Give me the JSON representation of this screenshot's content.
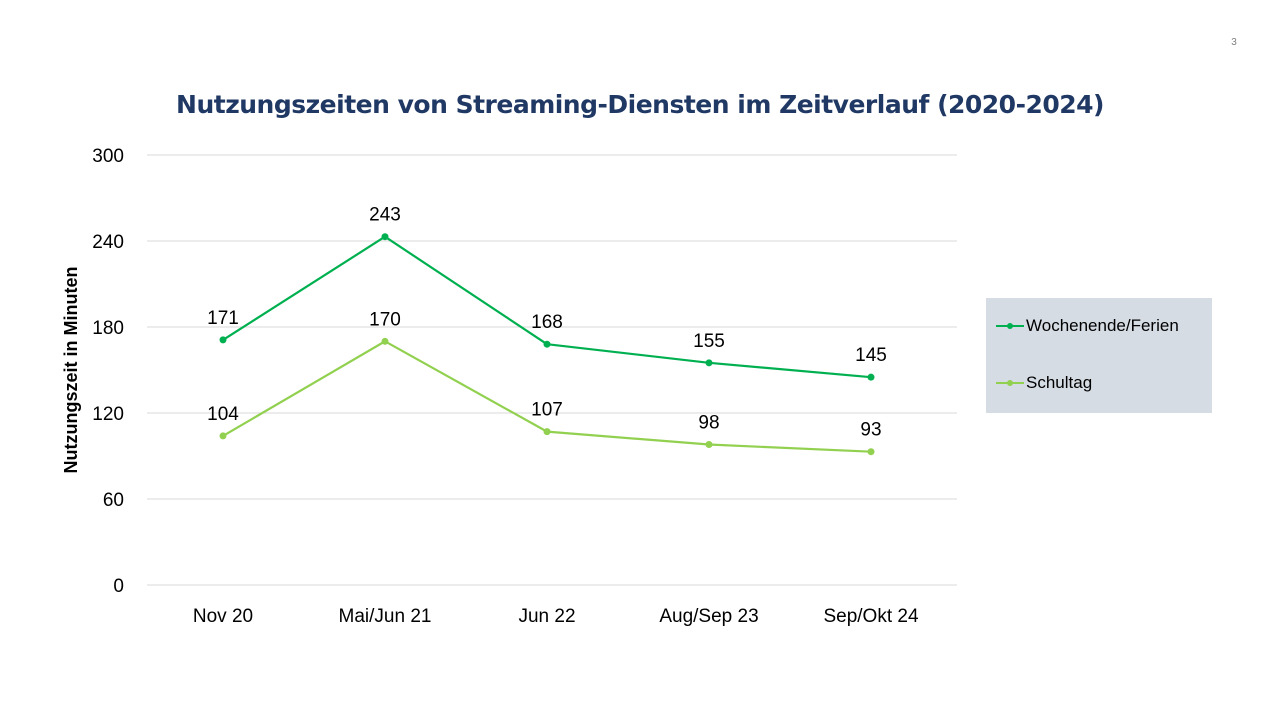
{
  "slide": {
    "number": "3"
  },
  "colors": {
    "title": "#1f3864",
    "series1": "#00b050",
    "series2": "#92d050",
    "legend_bg": "#d6dce4",
    "grid": "#d9d9d9"
  },
  "chart_data": {
    "type": "line",
    "title": "Nutzungszeiten von Streaming-Diensten im Zeitverlauf (2020-2024)",
    "xlabel": "",
    "ylabel": "Nutzungszeit in Minuten",
    "categories": [
      "Nov 20",
      "Mai/Jun 21",
      "Jun 22",
      "Aug/Sep 23",
      "Sep/Okt 24"
    ],
    "ylim": [
      0,
      300
    ],
    "yticks": [
      "0",
      "60",
      "120",
      "180",
      "240",
      "300"
    ],
    "grid": true,
    "legend_position": "right",
    "series": [
      {
        "name": "Wochenende/Ferien",
        "color": "#00b050",
        "values": [
          171,
          243,
          168,
          155,
          145
        ]
      },
      {
        "name": "Schultag",
        "color": "#92d050",
        "values": [
          104,
          170,
          107,
          98,
          93
        ]
      }
    ]
  }
}
